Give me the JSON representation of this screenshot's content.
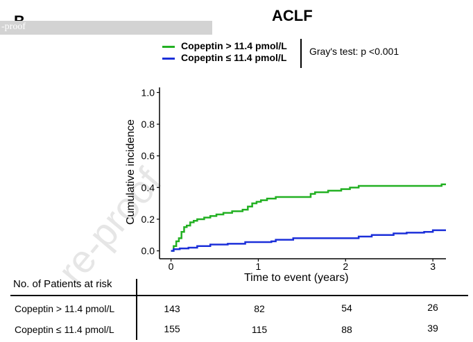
{
  "header": {
    "panel_letter": "B",
    "banner_text": "-proof",
    "watermark_text": "re-proof"
  },
  "colors": {
    "high": "#22b022",
    "low": "#1b2fd9"
  },
  "chart_data": {
    "type": "line",
    "title": "ACLF",
    "xlabel": "Time to event (years)",
    "ylabel": "Cumulative incidence",
    "xlim": [
      -0.1,
      3.15
    ],
    "ylim": [
      -0.05,
      1.05
    ],
    "xticks": [
      0,
      1,
      2,
      3
    ],
    "xtick_labels": [
      "0",
      "1",
      "2",
      "3"
    ],
    "yticks": [
      0.0,
      0.2,
      0.4,
      0.6,
      0.8,
      1.0
    ],
    "ytick_labels": [
      "0.0",
      "0.2",
      "0.4",
      "0.6",
      "0.8",
      "1.0"
    ],
    "grid": false,
    "legend_position": "top",
    "annotation": "Gray's test: p <0.001",
    "series": [
      {
        "name": "Copeptin > 11.4 pmol/L",
        "color": "#22b022",
        "x": [
          0,
          0.03,
          0.06,
          0.09,
          0.12,
          0.15,
          0.18,
          0.22,
          0.26,
          0.3,
          0.38,
          0.45,
          0.52,
          0.6,
          0.7,
          0.82,
          0.88,
          0.93,
          0.98,
          1.03,
          1.1,
          1.2,
          1.35,
          1.6,
          1.65,
          1.8,
          1.95,
          2.05,
          2.15,
          2.6,
          3.0,
          3.1,
          3.15
        ],
        "y": [
          0,
          0.03,
          0.06,
          0.08,
          0.12,
          0.15,
          0.16,
          0.18,
          0.19,
          0.2,
          0.21,
          0.22,
          0.23,
          0.24,
          0.25,
          0.26,
          0.28,
          0.3,
          0.31,
          0.32,
          0.33,
          0.34,
          0.34,
          0.36,
          0.37,
          0.38,
          0.39,
          0.4,
          0.41,
          0.41,
          0.41,
          0.42,
          0.42
        ]
      },
      {
        "name": "Copeptin ≤ 11.4 pmol/L",
        "color": "#1b2fd9",
        "x": [
          0,
          0.03,
          0.1,
          0.2,
          0.3,
          0.45,
          0.65,
          0.85,
          1.15,
          1.2,
          1.4,
          1.8,
          2.15,
          2.3,
          2.5,
          2.55,
          2.7,
          2.9,
          3.0,
          3.15
        ],
        "y": [
          0,
          0.01,
          0.015,
          0.02,
          0.03,
          0.04,
          0.045,
          0.055,
          0.06,
          0.07,
          0.08,
          0.08,
          0.09,
          0.1,
          0.1,
          0.11,
          0.115,
          0.12,
          0.13,
          0.13
        ]
      }
    ]
  },
  "risk_table": {
    "title": "No. of Patients at risk",
    "rows": [
      {
        "label": "Copeptin > 11.4 pmol/L",
        "values": [
          "143",
          "82",
          "54",
          "26"
        ]
      },
      {
        "label": "Copeptin ≤ 11.4 pmol/L",
        "values": [
          "155",
          "115",
          "88",
          "39"
        ]
      }
    ]
  }
}
